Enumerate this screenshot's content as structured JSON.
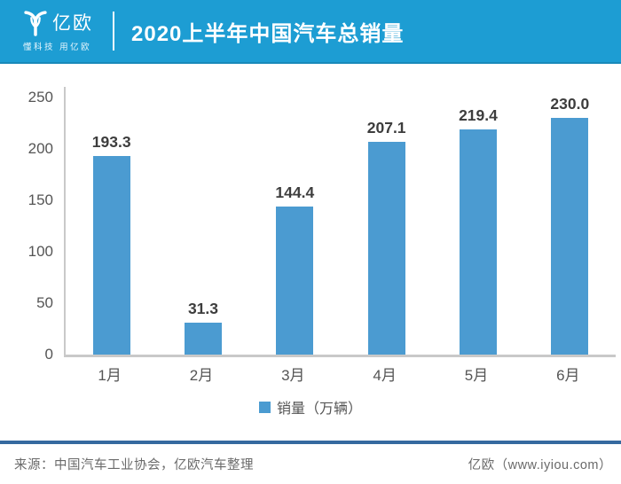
{
  "colors": {
    "header_bg": "#1d9dd3",
    "bar": "#4b9bd1",
    "axis": "#c9c9c9",
    "tick_text": "#555555",
    "label_text": "#3d3d3d",
    "divider_line": "#35699f",
    "footer_text": "#6a6a6a"
  },
  "header": {
    "logo_text": "亿欧",
    "logo_tagline": "懂科技 用亿欧",
    "title": "2020上半年中国汽车总销量"
  },
  "chart_data": {
    "type": "bar",
    "title": "2020上半年中国汽车总销量",
    "categories": [
      "1月",
      "2月",
      "3月",
      "4月",
      "5月",
      "6月"
    ],
    "values": [
      193.3,
      31.3,
      144.4,
      207.1,
      219.4,
      230.0
    ],
    "data_labels": [
      "193.3",
      "31.3",
      "144.4",
      "207.1",
      "219.4",
      "230.0"
    ],
    "series_name": "销量（万辆）",
    "xlabel": "",
    "ylabel": "",
    "ylim": [
      0,
      250
    ],
    "yticks": [
      0,
      50,
      100,
      150,
      200,
      250
    ],
    "grid": false,
    "legend_position": "bottom"
  },
  "legend": {
    "label": "销量（万辆）"
  },
  "footer": {
    "source": "来源：中国汽车工业协会，亿欧汽车整理",
    "site": "亿欧（www.iyiou.com）"
  }
}
